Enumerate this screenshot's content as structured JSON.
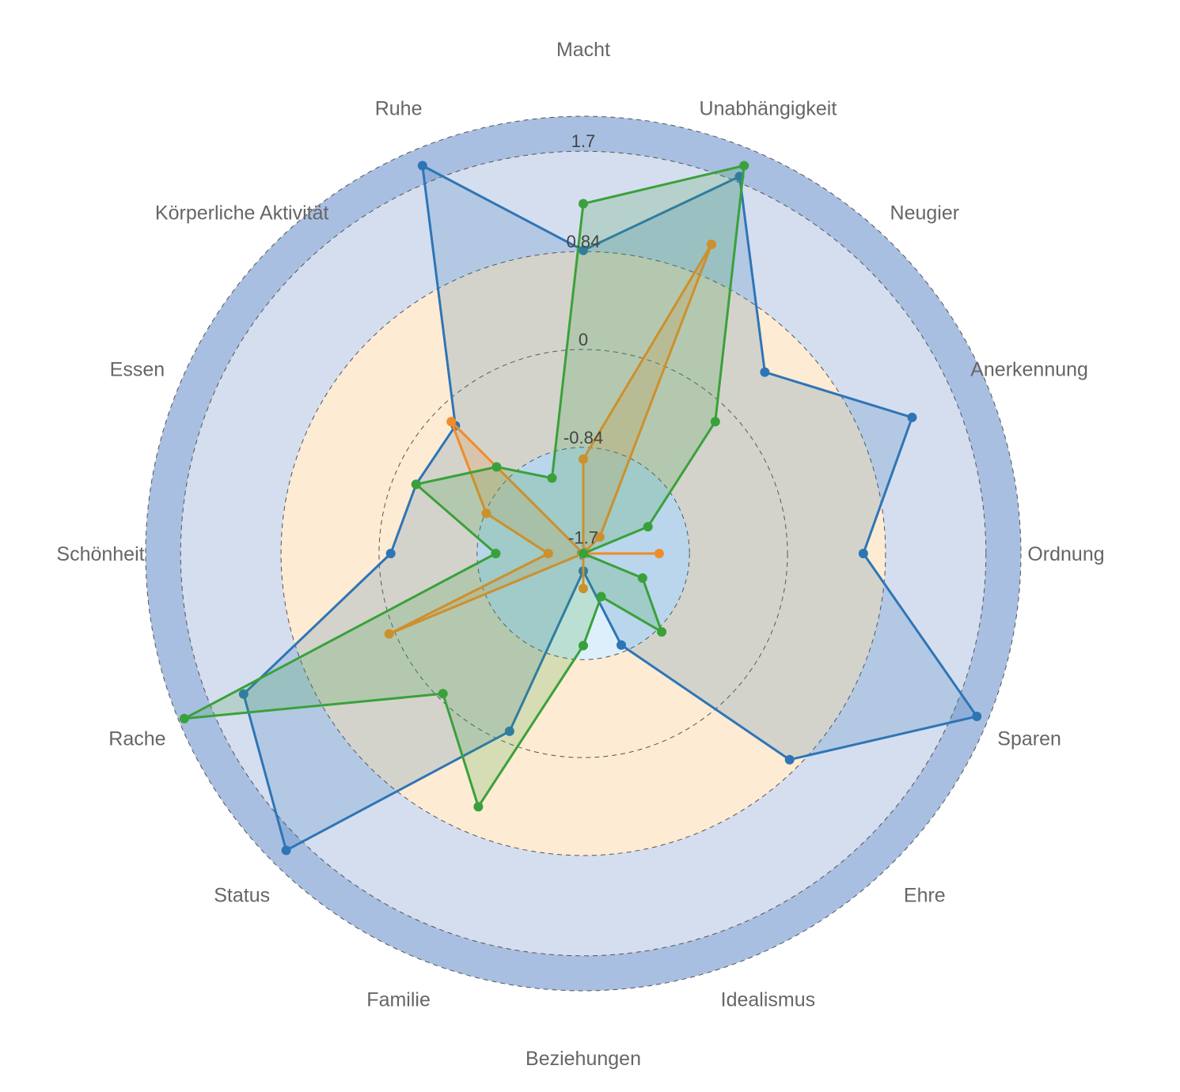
{
  "chart_data": {
    "type": "radar",
    "categories": [
      "Macht",
      "Unabhängigkeit",
      "Neugier",
      "Anerkennung",
      "Ordnung",
      "Sparen",
      "Ehre",
      "Idealismus",
      "Beziehungen",
      "Familie",
      "Status",
      "Rache",
      "Schönheit",
      "Essen",
      "Körperliche Aktivität",
      "Ruhe"
    ],
    "r_ticks": [
      -1.7,
      -0.84,
      0,
      0.84,
      1.7
    ],
    "r_tick_labels": [
      "-1.7",
      "-0.84",
      "0",
      "0.84",
      "1.7"
    ],
    "r_range": [
      -1.75,
      2.0
    ],
    "grid": "dashed circles",
    "bands": [
      {
        "from": -1.75,
        "to": -0.84,
        "color": "#dceffa"
      },
      {
        "from": -0.84,
        "to": 0.84,
        "color": "#fdebd3"
      },
      {
        "from": 0.84,
        "to": 1.7,
        "color": "#d5deef"
      },
      {
        "from": 1.7,
        "to": 2.0,
        "color": "#a8bfe1"
      }
    ],
    "series": [
      {
        "color": "#2e75b6",
        "values": [
          0.85,
          1.75,
          0.45,
          1.3,
          0.65,
          1.9,
          0.75,
          -0.9,
          -1.6,
          -0.1,
          1.85,
          1.4,
          -0.1,
          -0.2,
          -0.2,
          1.85
        ]
      },
      {
        "color": "#f08c2a",
        "values": [
          -0.94,
          1.12,
          -1.55,
          -1.75,
          -1.1,
          -1.75,
          -1.75,
          -1.75,
          -1.45,
          -1.75,
          -1.75,
          0.05,
          -1.45,
          -0.85,
          -0.15,
          -1.75
        ]
      },
      {
        "color": "#3aa13a",
        "values": [
          1.25,
          1.85,
          -0.15,
          -1.15,
          -1.75,
          -1.2,
          -0.8,
          -1.35,
          -0.96,
          0.6,
          -0.05,
          1.95,
          -1.0,
          -0.2,
          -0.7,
          -1.05
        ]
      }
    ]
  }
}
